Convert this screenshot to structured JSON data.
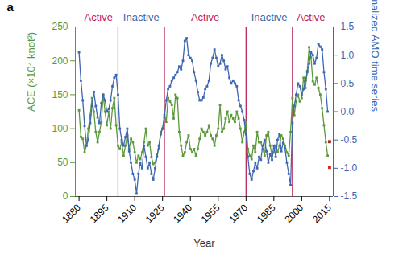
{
  "chart_data": {
    "type": "line",
    "title": "a",
    "x_label": "Year",
    "y_label": "ACE (×10⁴ knot²)",
    "y2_label": "Normalized AMO time series",
    "x": [
      1880,
      1881,
      1882,
      1883,
      1884,
      1885,
      1886,
      1887,
      1888,
      1889,
      1890,
      1891,
      1892,
      1893,
      1894,
      1895,
      1896,
      1897,
      1898,
      1899,
      1900,
      1901,
      1902,
      1903,
      1904,
      1905,
      1906,
      1907,
      1908,
      1909,
      1910,
      1911,
      1912,
      1913,
      1914,
      1915,
      1916,
      1917,
      1918,
      1919,
      1920,
      1921,
      1922,
      1923,
      1924,
      1925,
      1926,
      1927,
      1928,
      1929,
      1930,
      1931,
      1932,
      1933,
      1934,
      1935,
      1936,
      1937,
      1938,
      1939,
      1940,
      1941,
      1942,
      1943,
      1944,
      1945,
      1946,
      1947,
      1948,
      1949,
      1950,
      1951,
      1952,
      1953,
      1954,
      1955,
      1956,
      1957,
      1958,
      1959,
      1960,
      1961,
      1962,
      1963,
      1964,
      1965,
      1966,
      1967,
      1968,
      1969,
      1970,
      1971,
      1972,
      1973,
      1974,
      1975,
      1976,
      1977,
      1978,
      1979,
      1980,
      1981,
      1982,
      1983,
      1984,
      1985,
      1986,
      1987,
      1988,
      1989,
      1990,
      1991,
      1992,
      1993,
      1994,
      1995,
      1996,
      1997,
      1998,
      1999,
      2000,
      2001,
      2002,
      2003,
      2004,
      2005,
      2006,
      2007,
      2008,
      2009,
      2010,
      2011,
      2012,
      2013,
      2014
    ],
    "xlim": [
      1878,
      2017
    ],
    "xticks": [
      1880,
      1895,
      1910,
      1925,
      1940,
      1955,
      1970,
      1985,
      2000,
      2015
    ],
    "ylim": [
      0,
      250
    ],
    "yticks": [
      0,
      50,
      100,
      150,
      200,
      250
    ],
    "y2lim": [
      -1.5,
      1.5
    ],
    "y2ticks": [
      1.5,
      {
        "value": 1,
        "label": "1.0"
      },
      0.5,
      {
        "value": 0,
        "label": "0.0"
      },
      -0.5,
      {
        "value": -1,
        "label": "-1.0"
      },
      -1.5
    ],
    "grid": false,
    "series": [
      {
        "color": "#5b9a3c",
        "marker": "square",
        "type": "line",
        "values": [
          127,
          88,
          85,
          65,
          75,
          100,
          120,
          145,
          125,
          95,
          80,
          95,
          110,
          150,
          125,
          105,
          125,
          100,
          130,
          145,
          105,
          75,
          70,
          80,
          60,
          75,
          90,
          70,
          85,
          80,
          65,
          50,
          60,
          55,
          65,
          80,
          100,
          75,
          80,
          58,
          48,
          50,
          62,
          70,
          95,
          100,
          120,
          110,
          145,
          140,
          135,
          115,
          150,
          145,
          95,
          75,
          60,
          65,
          80,
          90,
          70,
          65,
          70,
          60,
          70,
          85,
          100,
          95,
          90,
          95,
          105,
          90,
          85,
          75,
          90,
          100,
          135,
          95,
          100,
          115,
          125,
          110,
          120,
          115,
          110,
          125,
          115,
          100,
          80,
          95,
          110,
          70,
          60,
          55,
          75,
          65,
          95,
          80,
          80,
          70,
          60,
          90,
          95,
          75,
          60,
          65,
          75,
          65,
          75,
          90,
          85,
          75,
          65,
          60,
          95,
          145,
          120,
          140,
          150,
          140,
          145,
          175,
          160,
          185,
          220,
          205,
          170,
          165,
          175,
          160,
          150,
          130,
          105,
          80,
          60
        ]
      },
      {
        "color": "#3d67b1",
        "marker": "square",
        "type": "line",
        "axis": "y2",
        "values": [
          1.05,
          0.55,
          0.2,
          -0.25,
          -0.6,
          -0.5,
          -0.2,
          0.1,
          0.35,
          0.1,
          -0.1,
          -0.2,
          0.15,
          0.3,
          0.2,
          0,
          0.05,
          0.2,
          0.45,
          0.6,
          0.65,
          0.3,
          -0.3,
          -0.5,
          -0.6,
          -0.45,
          -0.3,
          -0.7,
          -0.9,
          -1.1,
          -1.2,
          -1.45,
          -1.1,
          -0.9,
          -1,
          -0.6,
          -0.8,
          -1,
          -0.9,
          -1.1,
          -1.2,
          -1,
          -0.8,
          -0.6,
          -0.4,
          -0.3,
          -0.1,
          0.2,
          0.4,
          0.45,
          0.55,
          0.6,
          0.65,
          0.7,
          0.8,
          0.75,
          0.9,
          1.25,
          1.3,
          1,
          0.95,
          0.9,
          0.7,
          0.55,
          0.35,
          0.2,
          0.2,
          0.25,
          0.4,
          0.45,
          0.55,
          0.85,
          0.95,
          1.1,
          0.95,
          0.8,
          0.85,
          1,
          0.9,
          0.75,
          0.8,
          0.6,
          0.5,
          0.55,
          0.5,
          0.45,
          0.2,
          0.1,
          0,
          -0.15,
          -0.4,
          -0.8,
          -1.1,
          -1.2,
          -1.05,
          -0.9,
          -1,
          -0.8,
          -0.85,
          -0.6,
          -0.5,
          -0.7,
          -0.9,
          -0.75,
          -0.85,
          -0.6,
          -0.8,
          -0.5,
          -0.4,
          -0.7,
          -0.55,
          -0.65,
          -0.9,
          -1.1,
          -1.3,
          -0.2,
          0.1,
          0.3,
          0.5,
          0.45,
          0.3,
          0.4,
          0.55,
          0.7,
          0.85,
          1.05,
          1,
          0.85,
          0.95,
          1.2,
          1.15,
          1.1,
          0.7,
          0.4,
          0
        ]
      },
      {
        "color": "#a52a2a",
        "marker": "square",
        "type": "scatter",
        "axis": "y2",
        "x": [
          2015
        ],
        "values": [
          -0.53
        ]
      },
      {
        "color": "#d62728",
        "marker": "square",
        "type": "scatter",
        "x": [
          2015
        ],
        "values": [
          43
        ]
      }
    ],
    "periods": [
      {
        "label": "Active",
        "start": 1880,
        "end": 1901,
        "color": "#c2185b"
      },
      {
        "label": "Inactive",
        "start": 1901,
        "end": 1926,
        "color": "#3d67b1"
      },
      {
        "label": "Active",
        "start": 1926,
        "end": 1970,
        "color": "#c2185b"
      },
      {
        "label": "Inactive",
        "start": 1970,
        "end": 1995,
        "color": "#3d67b1"
      },
      {
        "label": "Active",
        "start": 1995,
        "end": 2015,
        "color": "#c2185b"
      }
    ]
  }
}
